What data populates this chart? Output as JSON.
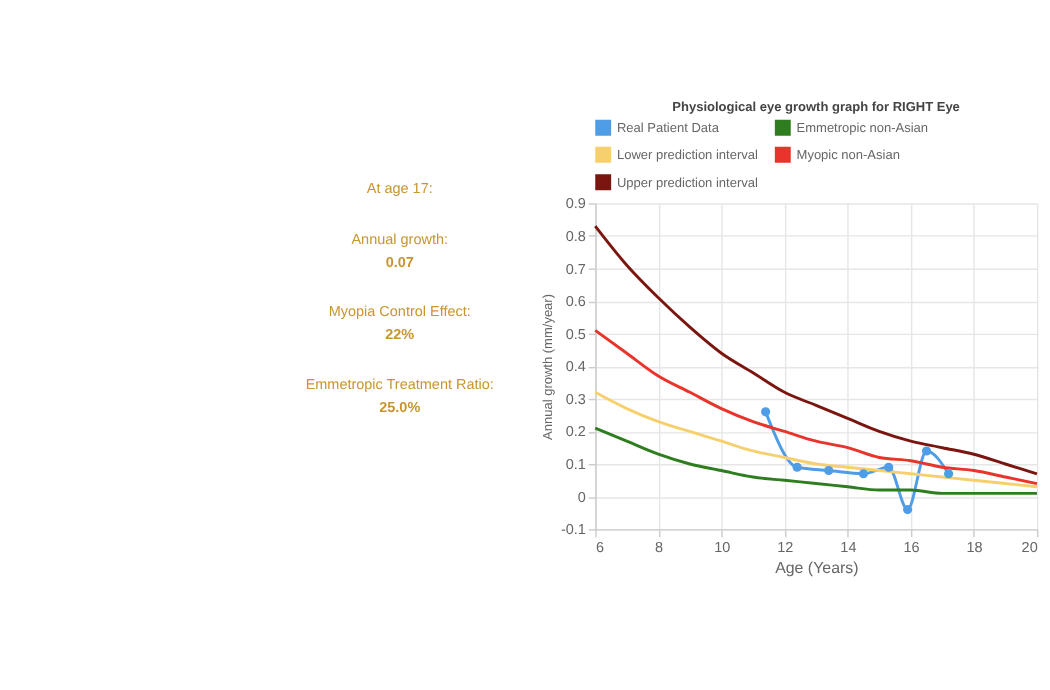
{
  "chart_data": {
    "type": "line",
    "title": "Physiological eye growth graph for RIGHT Eye",
    "xlabel": "Age (Years)",
    "ylabel": "Annual growth (mm/year)",
    "x": [
      6,
      7,
      8,
      9,
      10,
      11,
      12,
      13,
      14,
      15,
      16,
      17,
      18,
      19,
      20
    ],
    "series": [
      {
        "name": "Real Patient Data",
        "color": "#4e9de6",
        "marker": "circle",
        "x": [
          11.4,
          12.4,
          13.4,
          14.5,
          15.3,
          15.9,
          16.5,
          17.2
        ],
        "values": [
          0.26,
          0.09,
          0.08,
          0.07,
          0.09,
          -0.04,
          0.14,
          0.07
        ]
      },
      {
        "name": "Emmetropic non-Asian",
        "color": "#2e7d1f",
        "values": [
          0.21,
          0.17,
          0.13,
          0.1,
          0.08,
          0.06,
          0.05,
          0.04,
          0.03,
          0.02,
          0.02,
          0.01,
          0.01,
          0.01,
          0.01
        ]
      },
      {
        "name": "Lower prediction interval",
        "color": "#f7d06e",
        "values": [
          0.32,
          0.27,
          0.23,
          0.2,
          0.17,
          0.14,
          0.12,
          0.1,
          0.09,
          0.08,
          0.07,
          0.06,
          0.05,
          0.04,
          0.03
        ]
      },
      {
        "name": "Myopic non-Asian",
        "color": "#e8342a",
        "values": [
          0.51,
          0.44,
          0.37,
          0.32,
          0.27,
          0.23,
          0.2,
          0.17,
          0.15,
          0.12,
          0.11,
          0.09,
          0.08,
          0.06,
          0.04
        ]
      },
      {
        "name": "Upper prediction interval",
        "color": "#7a160f",
        "values": [
          0.83,
          0.71,
          0.61,
          0.52,
          0.44,
          0.38,
          0.32,
          0.28,
          0.24,
          0.2,
          0.17,
          0.15,
          0.13,
          0.1,
          0.07
        ]
      }
    ],
    "xlim": [
      6,
      20
    ],
    "xticks": [
      6,
      8,
      10,
      12,
      14,
      16,
      18,
      20
    ],
    "ylim": [
      -0.1,
      0.9
    ],
    "yticks": [
      -0.1,
      0,
      0.1,
      0.2,
      0.3,
      0.4,
      0.5,
      0.6,
      0.7,
      0.8,
      0.9
    ],
    "grid": true,
    "legend": "top",
    "annotations": [
      "At age 17:",
      "Annual growth:",
      "0.07",
      "Myopia Control Effect:",
      "22%",
      "Emmetropic Treatment Ratio:",
      "25.0%"
    ]
  }
}
